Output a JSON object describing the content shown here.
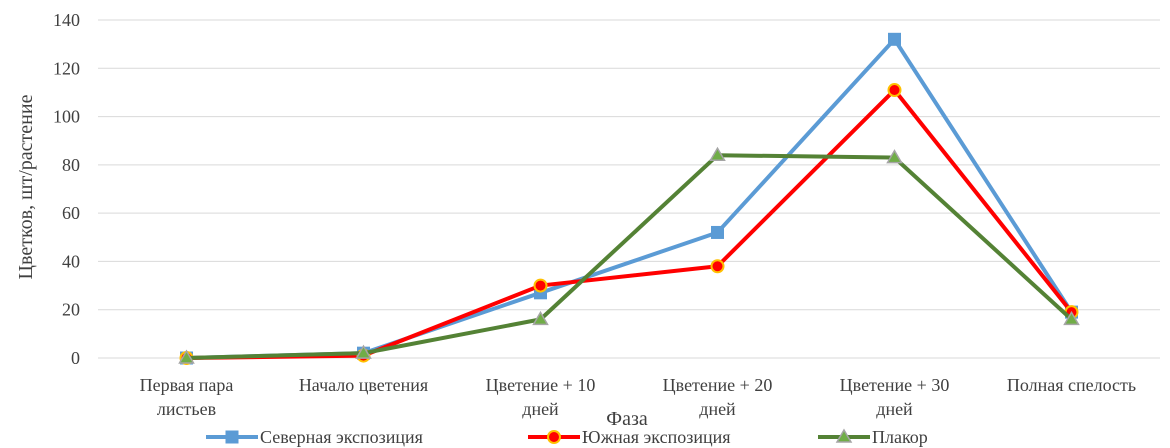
{
  "chart_data": {
    "type": "line",
    "categories": [
      [
        "Первая пара",
        "листьев"
      ],
      [
        "Начало цветения"
      ],
      [
        "Цветение + 10",
        "дней"
      ],
      [
        "Цветение + 20",
        "дней"
      ],
      [
        "Цветение + 30",
        "дней"
      ],
      [
        "Полная спелость"
      ]
    ],
    "series": [
      {
        "name": "Северная экспозиция",
        "values": [
          0,
          2,
          27,
          52,
          132,
          19
        ],
        "color": "#5b9bd5",
        "marker": "square"
      },
      {
        "name": "Южная экспозиция",
        "values": [
          0,
          1,
          30,
          38,
          111,
          19
        ],
        "color": "#ff0000",
        "marker": "circle",
        "marker_fill": "#ff0000",
        "marker_stroke": "#ffc000"
      },
      {
        "name": "Плакор",
        "values": [
          0,
          2,
          16,
          84,
          83,
          16
        ],
        "color": "#548235",
        "marker": "triangle",
        "marker_fill": "#70ad47",
        "marker_stroke": "#a5a5a5"
      }
    ],
    "title": "",
    "xlabel": "Фаза",
    "ylabel": "Цветков, шт/растение",
    "ylim": [
      0,
      140
    ],
    "yticks": [
      0,
      20,
      40,
      60,
      80,
      100,
      120,
      140
    ],
    "grid": true,
    "legend_position": "bottom"
  }
}
